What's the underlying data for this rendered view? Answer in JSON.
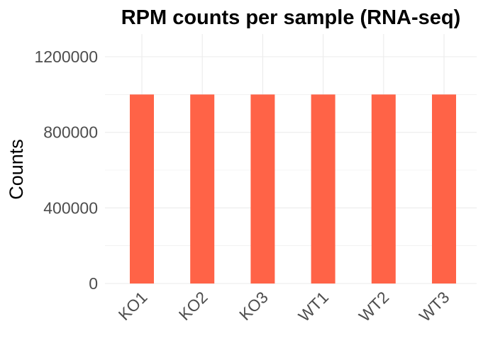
{
  "chart_data": {
    "type": "bar",
    "title": "RPM counts per sample (RNA-seq)",
    "xlabel": "",
    "ylabel": "Counts",
    "categories": [
      "KO1",
      "KO2",
      "KO3",
      "WT1",
      "WT2",
      "WT3"
    ],
    "values": [
      1000000,
      1000000,
      1000000,
      1000000,
      1000000,
      1000000
    ],
    "ylim": [
      0,
      1200000
    ],
    "yticks": [
      0,
      400000,
      800000,
      1200000
    ],
    "y_minor_ticks": [
      200000,
      600000,
      1000000
    ],
    "yticklabels": [
      "0",
      "400000",
      "800000",
      "1200000"
    ],
    "bar_color": "#FF6347",
    "grid": true,
    "grid_color": "#EBEBEB",
    "legend": "none",
    "x_tick_rotation_deg": 45
  }
}
